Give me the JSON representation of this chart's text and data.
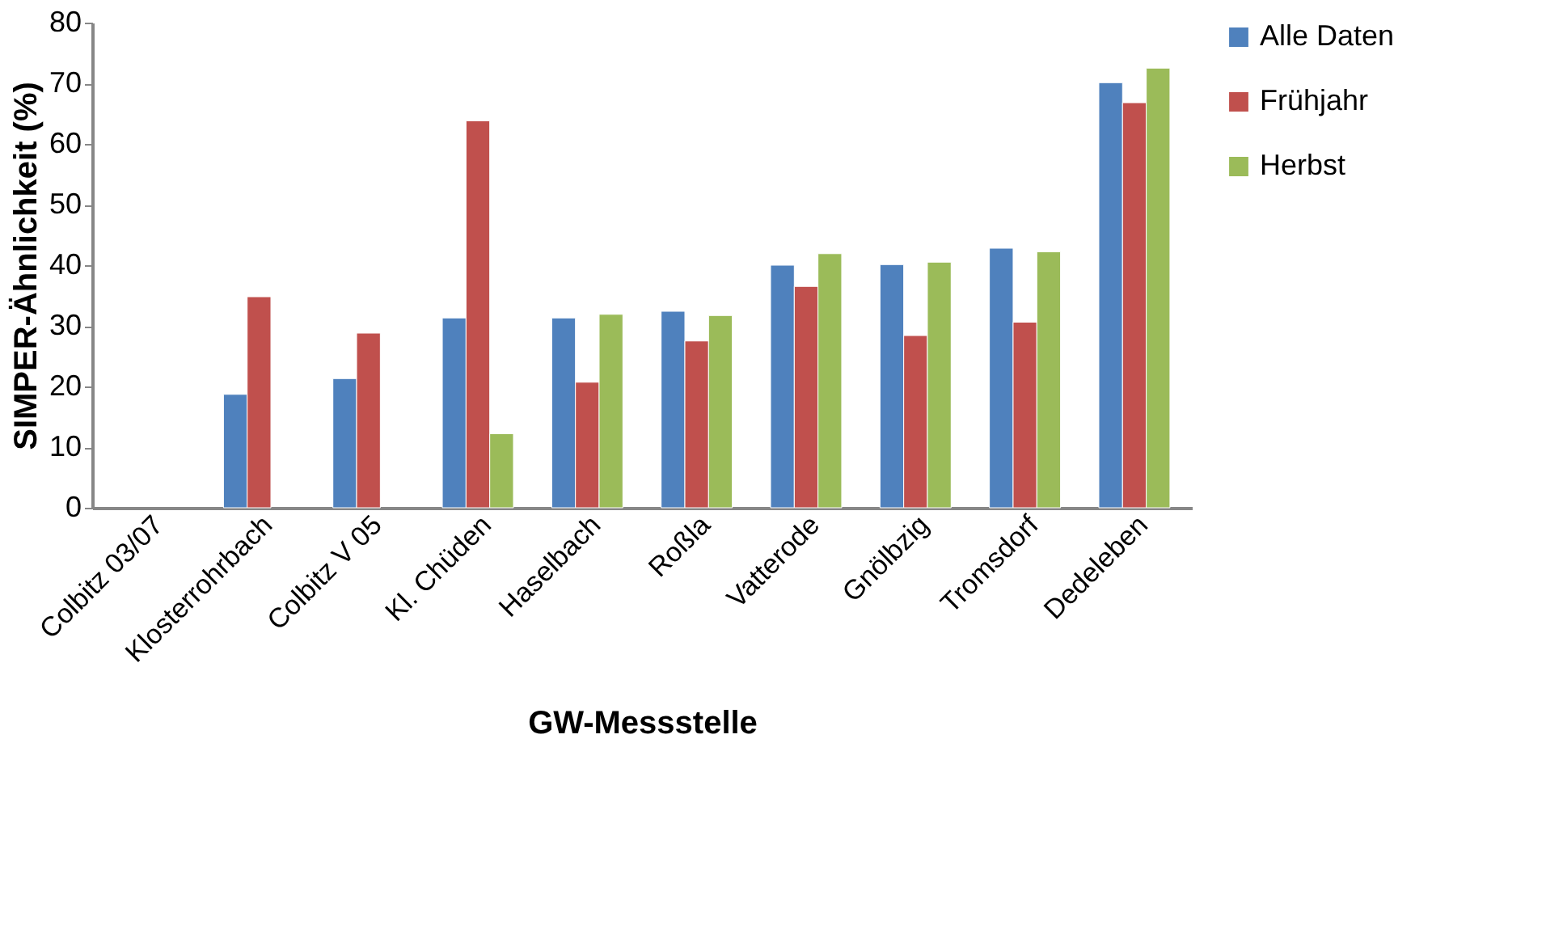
{
  "chart_data": {
    "type": "bar",
    "xlabel": "GW-Messstelle",
    "ylabel": "SIMPER-Ähnlichkeit (%)",
    "categories": [
      "Colbitz 03/07",
      "Klosterrohrbach",
      "Colbitz V 05",
      "Kl. Chüden",
      "Haselbach",
      "Roßla",
      "Vatterode",
      "Gnölbzig",
      "Tromsdorf",
      "Dedeleben"
    ],
    "series": [
      {
        "name": "Alle Daten",
        "color": "#4f81bd",
        "values": [
          null,
          18.7,
          21.3,
          31.3,
          31.3,
          32.4,
          40.0,
          40.1,
          42.8,
          70.1
        ]
      },
      {
        "name": "Frühjahr",
        "color": "#c0504d",
        "values": [
          null,
          34.8,
          28.8,
          63.8,
          20.7,
          27.5,
          36.5,
          28.4,
          30.6,
          66.8
        ]
      },
      {
        "name": "Herbst",
        "color": "#9bbb59",
        "values": [
          null,
          null,
          null,
          12.2,
          31.9,
          31.7,
          41.9,
          40.5,
          42.2,
          72.5
        ]
      }
    ],
    "ylim": [
      0,
      80
    ],
    "yticks": [
      0,
      10,
      20,
      30,
      40,
      50,
      60,
      70,
      80
    ],
    "grid": false,
    "legend": "right"
  }
}
